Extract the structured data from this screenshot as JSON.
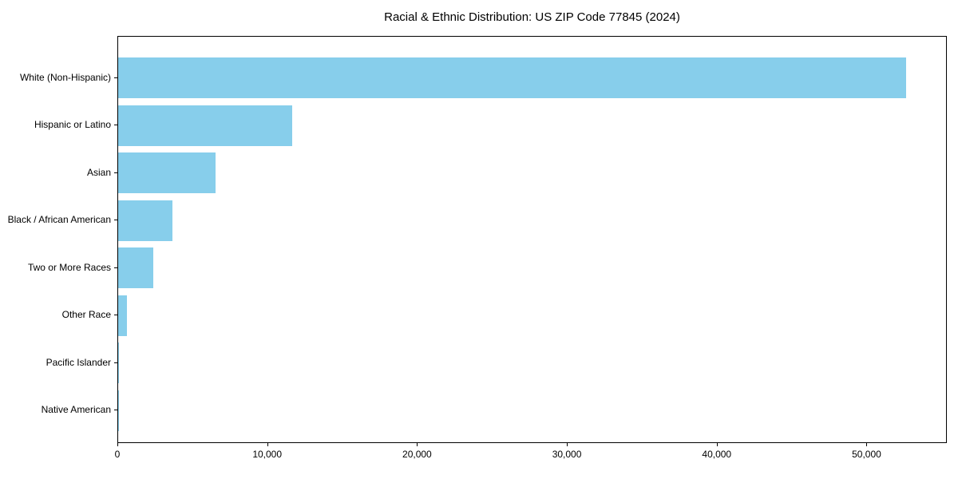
{
  "chart_data": {
    "type": "bar",
    "orientation": "horizontal",
    "title": "Racial & Ethnic Distribution: US ZIP Code 77845 (2024)",
    "categories": [
      "White (Non-Hispanic)",
      "Hispanic or Latino",
      "Asian",
      "Black / African American",
      "Two or More Races",
      "Other Race",
      "Pacific Islander",
      "Native American"
    ],
    "values": [
      52600,
      11600,
      6500,
      3600,
      2340,
      600,
      50,
      20
    ],
    "xlabel": "",
    "ylabel": "",
    "xlim": [
      0,
      55250
    ],
    "xticks": [
      0,
      10000,
      20000,
      30000,
      40000,
      50000
    ],
    "xtick_labels": [
      "0",
      "10,000",
      "20,000",
      "30,000",
      "40,000",
      "50,000"
    ],
    "bar_color": "#87CEEB",
    "text_color": "#000000",
    "grid": false,
    "legend": null
  }
}
